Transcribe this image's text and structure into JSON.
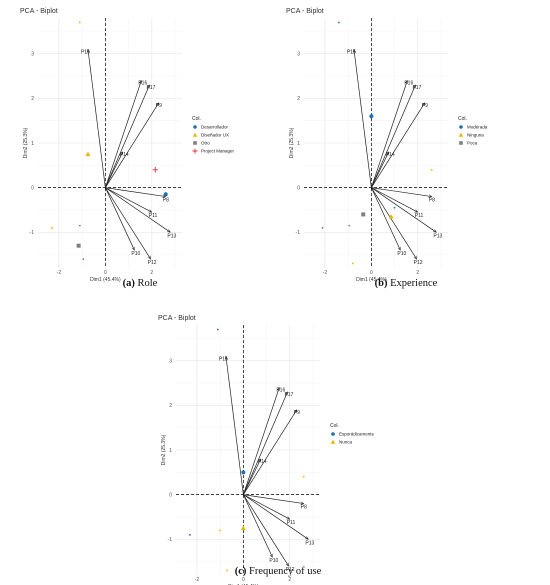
{
  "captions": [
    {
      "tag": "(a)",
      "text": " Role"
    },
    {
      "tag": "(b)",
      "text": " Experience"
    },
    {
      "tag": "(c)",
      "text": " Frequency of use"
    }
  ],
  "chart_data": [
    {
      "type": "scatter",
      "title": "PCA - Biplot",
      "xlabel": "Dim1 (45.4%)",
      "ylabel": "Dim2 (25.3%)",
      "xlim": [
        -2.9,
        3.3
      ],
      "ylim": [
        -1.8,
        3.8
      ],
      "xticks": [
        -2,
        0,
        2
      ],
      "yticks": [
        -1,
        0,
        1,
        2,
        3
      ],
      "grid": true,
      "legend": {
        "title": "Col.",
        "placement": "right"
      },
      "variables": [
        {
          "name": "P15",
          "x": -0.75,
          "y": 3.1
        },
        {
          "name": "P16",
          "x": 1.55,
          "y": 2.4
        },
        {
          "name": "P17",
          "x": 1.9,
          "y": 2.3
        },
        {
          "name": "P9",
          "x": 2.3,
          "y": 1.9
        },
        {
          "name": "P14",
          "x": 0.75,
          "y": 0.8
        },
        {
          "name": "P8",
          "x": 2.6,
          "y": -0.2
        },
        {
          "name": "P11",
          "x": 2.0,
          "y": -0.55
        },
        {
          "name": "P13",
          "x": 2.8,
          "y": -1.0
        },
        {
          "name": "P10",
          "x": 1.25,
          "y": -1.4
        },
        {
          "name": "P12",
          "x": 1.95,
          "y": -1.6
        }
      ],
      "series": [
        {
          "name": "Desarrollador",
          "color": "#1f6fb5",
          "marker": "circle",
          "centroid": {
            "x": 2.6,
            "y": -0.15
          },
          "points": [
            {
              "x": 2.6,
              "y": -0.12
            }
          ]
        },
        {
          "name": "Diseñador UX",
          "color": "#e8b800",
          "marker": "triangle",
          "centroid": {
            "x": -0.75,
            "y": 0.75
          },
          "points": [
            {
              "x": -1.1,
              "y": 3.7
            },
            {
              "x": -2.3,
              "y": -0.9
            }
          ]
        },
        {
          "name": "Otro",
          "color": "#7f7f7f",
          "marker": "square",
          "centroid": {
            "x": -1.15,
            "y": -1.3
          },
          "points": [
            {
              "x": -1.1,
              "y": -0.85
            },
            {
              "x": -0.95,
              "y": -1.6
            }
          ]
        },
        {
          "name": "Project Manager",
          "color": "#e8303a",
          "marker": "plus",
          "centroid": {
            "x": 2.15,
            "y": 0.4
          },
          "points": []
        }
      ]
    },
    {
      "type": "scatter",
      "title": "PCA - Biplot",
      "xlabel": "Dim1 (45.4%)",
      "ylabel": "Dim2 (25.3%)",
      "xlim": [
        -2.9,
        3.3
      ],
      "ylim": [
        -1.8,
        3.8
      ],
      "xticks": [
        -2,
        0,
        2
      ],
      "yticks": [
        -1,
        0,
        1,
        2,
        3
      ],
      "grid": true,
      "legend": {
        "title": "Col.",
        "placement": "right"
      },
      "variables": [
        {
          "name": "P15",
          "x": -0.75,
          "y": 3.1
        },
        {
          "name": "P16",
          "x": 1.55,
          "y": 2.4
        },
        {
          "name": "P17",
          "x": 1.9,
          "y": 2.3
        },
        {
          "name": "P9",
          "x": 2.3,
          "y": 1.9
        },
        {
          "name": "P14",
          "x": 0.75,
          "y": 0.8
        },
        {
          "name": "P8",
          "x": 2.6,
          "y": -0.2
        },
        {
          "name": "P11",
          "x": 2.0,
          "y": -0.55
        },
        {
          "name": "P13",
          "x": 2.8,
          "y": -1.0
        },
        {
          "name": "P10",
          "x": 1.25,
          "y": -1.4
        },
        {
          "name": "P12",
          "x": 1.95,
          "y": -1.6
        }
      ],
      "series": [
        {
          "name": "Moderada",
          "color": "#1f6fb5",
          "marker": "circle",
          "centroid": {
            "x": 0.0,
            "y": 1.6
          },
          "points": [
            {
              "x": -1.4,
              "y": 3.7
            },
            {
              "x": 1.0,
              "y": -0.45
            }
          ]
        },
        {
          "name": "Ninguna",
          "color": "#e8b800",
          "marker": "triangle",
          "centroid": {
            "x": 0.85,
            "y": -0.65
          },
          "points": [
            {
              "x": 2.6,
              "y": 0.4
            },
            {
              "x": -0.8,
              "y": -1.7
            }
          ]
        },
        {
          "name": "Poca",
          "color": "#7f7f7f",
          "marker": "square",
          "centroid": {
            "x": -0.35,
            "y": -0.6
          },
          "points": [
            {
              "x": -2.1,
              "y": -0.9
            },
            {
              "x": -0.95,
              "y": -0.85
            }
          ]
        }
      ]
    },
    {
      "type": "scatter",
      "title": "PCA - Biplot",
      "xlabel": "Dim1 (45.4%)",
      "ylabel": "Dim2 (25.3%)",
      "xlim": [
        -2.9,
        3.3
      ],
      "ylim": [
        -1.8,
        3.8
      ],
      "xticks": [
        -2,
        0,
        2
      ],
      "yticks": [
        -1,
        0,
        1,
        2,
        3
      ],
      "grid": true,
      "legend": {
        "title": "Col.",
        "placement": "right"
      },
      "variables": [
        {
          "name": "P15",
          "x": -0.75,
          "y": 3.1
        },
        {
          "name": "P16",
          "x": 1.55,
          "y": 2.4
        },
        {
          "name": "P17",
          "x": 1.9,
          "y": 2.3
        },
        {
          "name": "P9",
          "x": 2.3,
          "y": 1.9
        },
        {
          "name": "P14",
          "x": 0.75,
          "y": 0.8
        },
        {
          "name": "P8",
          "x": 2.6,
          "y": -0.2
        },
        {
          "name": "P11",
          "x": 2.0,
          "y": -0.55
        },
        {
          "name": "P13",
          "x": 2.8,
          "y": -1.0
        },
        {
          "name": "P10",
          "x": 1.25,
          "y": -1.4
        },
        {
          "name": "P12",
          "x": 1.95,
          "y": -1.6
        }
      ],
      "series": [
        {
          "name": "Esporádicamente",
          "color": "#1f6fb5",
          "marker": "circle",
          "centroid": {
            "x": 0.0,
            "y": 0.5
          },
          "points": [
            {
              "x": -1.1,
              "y": 3.7
            },
            {
              "x": -2.3,
              "y": -0.9
            }
          ]
        },
        {
          "name": "Nunca",
          "color": "#e8b800",
          "marker": "triangle",
          "centroid": {
            "x": 0.0,
            "y": -0.75
          },
          "points": [
            {
              "x": 2.6,
              "y": 0.4
            },
            {
              "x": -1.0,
              "y": -0.8
            },
            {
              "x": -0.7,
              "y": -1.7
            }
          ]
        }
      ]
    }
  ]
}
